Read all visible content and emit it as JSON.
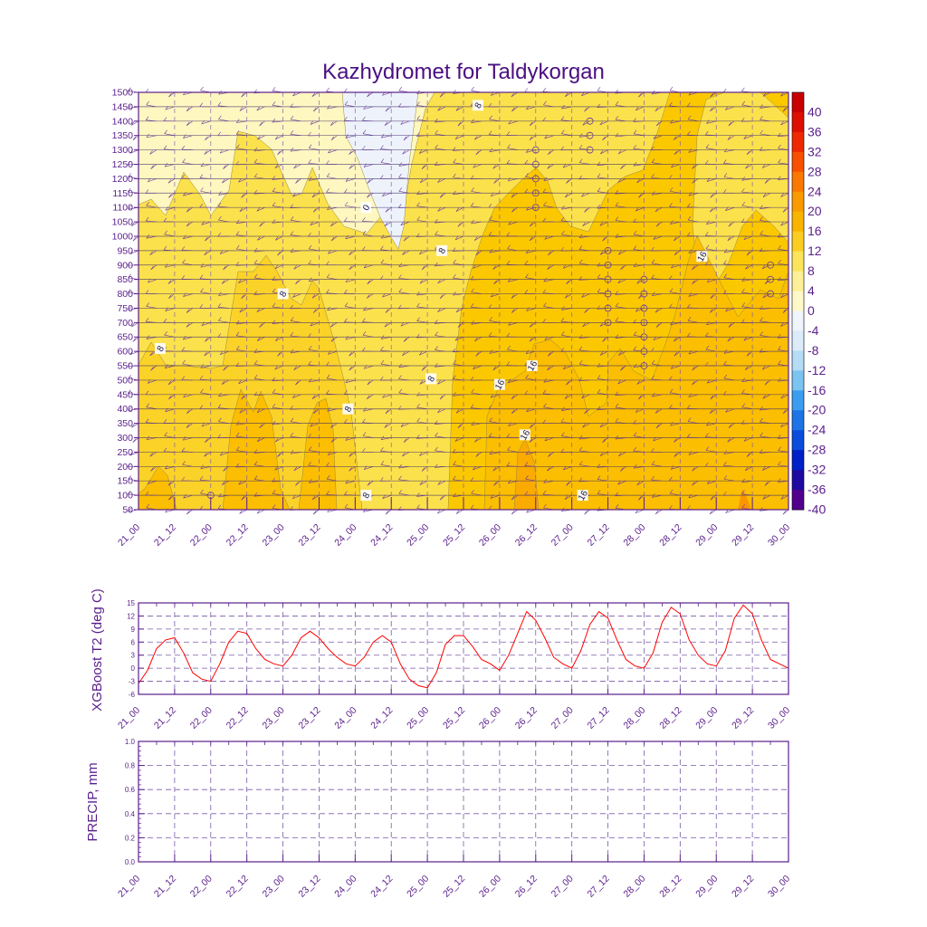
{
  "colors": {
    "ink": "#5a1e8c",
    "title": "#4b0f82",
    "line": "#ff0000",
    "grid": "#7a5aa8"
  },
  "chart_data": [
    {
      "id": "cross-section",
      "type": "heatmap",
      "title": "Kazhydromet for Taldykorgan",
      "xlabel": "",
      "ylabel": "",
      "x_ticks": [
        "21_00",
        "21_12",
        "22_00",
        "22_12",
        "23_00",
        "23_12",
        "24_00",
        "24_12",
        "25_00",
        "25_12",
        "26_00",
        "26_12",
        "27_00",
        "27_12",
        "28_00",
        "28_12",
        "29_00",
        "29_12",
        "30_00"
      ],
      "y_ticks": [
        50,
        100,
        150,
        200,
        250,
        300,
        350,
        400,
        450,
        500,
        550,
        600,
        650,
        700,
        750,
        800,
        850,
        900,
        950,
        1000,
        1050,
        1100,
        1150,
        1200,
        1250,
        1300,
        1350,
        1400,
        1450,
        1500
      ],
      "ylim": [
        50,
        1500
      ],
      "xlim": [
        0,
        18
      ],
      "colorbar": {
        "labels": [
          "40",
          "36",
          "32",
          "28",
          "24",
          "20",
          "16",
          "12",
          "8",
          "4",
          "0",
          "-4",
          "-8",
          "-12",
          "-16",
          "-20",
          "-24",
          "-28",
          "-32",
          "-36",
          "-40"
        ],
        "colors": [
          "#c80000",
          "#dc0f00",
          "#ee2800",
          "#f85000",
          "#fb7800",
          "#f99a00",
          "#f9b400",
          "#fbcc22",
          "#fce45a",
          "#fdf098",
          "#fff8c8",
          "#f0f4fc",
          "#dcebfa",
          "#b4dcf6",
          "#7cc4f0",
          "#3c9cf0",
          "#1e74e6",
          "#0a4cdc",
          "#0020c8",
          "#1e0aa0",
          "#50008c"
        ]
      },
      "contour_labels": [
        {
          "x": 9.4,
          "y": 1455,
          "text": "8"
        },
        {
          "x": 6.3,
          "y": 1100,
          "text": "0"
        },
        {
          "x": 8.4,
          "y": 950,
          "text": "8"
        },
        {
          "x": 15.6,
          "y": 930,
          "text": "16"
        },
        {
          "x": 4.0,
          "y": 800,
          "text": "8"
        },
        {
          "x": 0.6,
          "y": 610,
          "text": "8"
        },
        {
          "x": 10.9,
          "y": 550,
          "text": "16"
        },
        {
          "x": 10.0,
          "y": 485,
          "text": "16"
        },
        {
          "x": 8.1,
          "y": 505,
          "text": "8"
        },
        {
          "x": 5.8,
          "y": 400,
          "text": "8"
        },
        {
          "x": 10.7,
          "y": 310,
          "text": "16"
        },
        {
          "x": 6.3,
          "y": 100,
          "text": "8"
        },
        {
          "x": 12.3,
          "y": 100,
          "text": "16"
        }
      ],
      "calm_markers": [
        {
          "x": 11,
          "y": 1300
        },
        {
          "x": 11,
          "y": 1250
        },
        {
          "x": 11,
          "y": 1200
        },
        {
          "x": 11,
          "y": 1150
        },
        {
          "x": 11,
          "y": 1100
        },
        {
          "x": 12.5,
          "y": 1400
        },
        {
          "x": 12.5,
          "y": 1350
        },
        {
          "x": 12.5,
          "y": 1300
        },
        {
          "x": 13,
          "y": 950
        },
        {
          "x": 13,
          "y": 900
        },
        {
          "x": 13,
          "y": 850
        },
        {
          "x": 13,
          "y": 800
        },
        {
          "x": 13,
          "y": 750
        },
        {
          "x": 13,
          "y": 700
        },
        {
          "x": 14,
          "y": 850
        },
        {
          "x": 14,
          "y": 800
        },
        {
          "x": 14,
          "y": 750
        },
        {
          "x": 14,
          "y": 700
        },
        {
          "x": 14,
          "y": 650
        },
        {
          "x": 14,
          "y": 600
        },
        {
          "x": 14,
          "y": 550
        },
        {
          "x": 17.5,
          "y": 900
        },
        {
          "x": 17.5,
          "y": 850
        },
        {
          "x": 17.5,
          "y": 800
        },
        {
          "x": 2,
          "y": 100
        }
      ]
    },
    {
      "id": "t2",
      "type": "line",
      "title": "",
      "xlabel": "",
      "ylabel": "XGBoost T2 (deg C)",
      "x_ticks": [
        "21_00",
        "21_12",
        "22_00",
        "22_12",
        "23_00",
        "23_12",
        "24_00",
        "24_12",
        "25_00",
        "25_12",
        "26_00",
        "26_12",
        "27_00",
        "27_12",
        "28_00",
        "28_12",
        "29_00",
        "29_12",
        "30_00"
      ],
      "y_ticks": [
        -6,
        -3,
        0,
        3,
        6,
        9,
        12,
        15
      ],
      "ylim": [
        -6,
        15
      ],
      "xlim": [
        0,
        18
      ],
      "series": [
        {
          "name": "XGBoost T2",
          "x": [
            0,
            0.25,
            0.5,
            0.75,
            1,
            1.25,
            1.5,
            1.75,
            2,
            2.25,
            2.5,
            2.75,
            3,
            3.25,
            3.5,
            3.75,
            4,
            4.25,
            4.5,
            4.75,
            5,
            5.25,
            5.5,
            5.75,
            6,
            6.25,
            6.5,
            6.75,
            7,
            7.25,
            7.5,
            7.75,
            8,
            8.25,
            8.5,
            8.75,
            9,
            9.25,
            9.5,
            9.75,
            10,
            10.25,
            10.5,
            10.75,
            11,
            11.25,
            11.5,
            11.75,
            12,
            12.25,
            12.5,
            12.75,
            13,
            13.25,
            13.5,
            13.75,
            14,
            14.25,
            14.5,
            14.75,
            15,
            15.25,
            15.5,
            15.75,
            16,
            16.25,
            16.5,
            16.75,
            17,
            17.25,
            17.5,
            17.75,
            18
          ],
          "values": [
            -3.5,
            -0.5,
            4.5,
            6.5,
            7,
            3.5,
            -1,
            -2.5,
            -3,
            1,
            6,
            8.5,
            8,
            4.5,
            2,
            1,
            0.5,
            3,
            7,
            8.5,
            7,
            4.5,
            2.5,
            1,
            0.5,
            2.5,
            6,
            7.5,
            6,
            1,
            -2.5,
            -4,
            -4.5,
            -1,
            5.5,
            7.5,
            7.5,
            5,
            2,
            1,
            -0.5,
            3,
            8,
            13,
            11,
            7,
            2.5,
            1,
            0,
            4,
            10,
            13,
            11.5,
            6.5,
            2,
            0.5,
            0,
            3.5,
            10.5,
            14,
            12.5,
            6.5,
            3,
            1,
            0.5,
            4,
            11.5,
            14.5,
            12.5,
            6.5,
            2,
            1,
            0
          ]
        }
      ]
    },
    {
      "id": "precip",
      "type": "line",
      "title": "",
      "xlabel": "",
      "ylabel": "PRECIP, mm",
      "x_ticks": [
        "21_00",
        "21_12",
        "22_00",
        "22_12",
        "23_00",
        "23_12",
        "24_00",
        "24_12",
        "25_00",
        "25_12",
        "26_00",
        "26_12",
        "27_00",
        "27_12",
        "28_00",
        "28_12",
        "29_00",
        "29_12",
        "30_00"
      ],
      "y_ticks": [
        "0.0",
        "0.2",
        "0.4",
        "0.6",
        "0.8",
        "1.0"
      ],
      "ylim": [
        0,
        1
      ],
      "xlim": [
        0,
        18
      ],
      "series": [
        {
          "name": "PRECIP",
          "values": []
        }
      ]
    }
  ]
}
